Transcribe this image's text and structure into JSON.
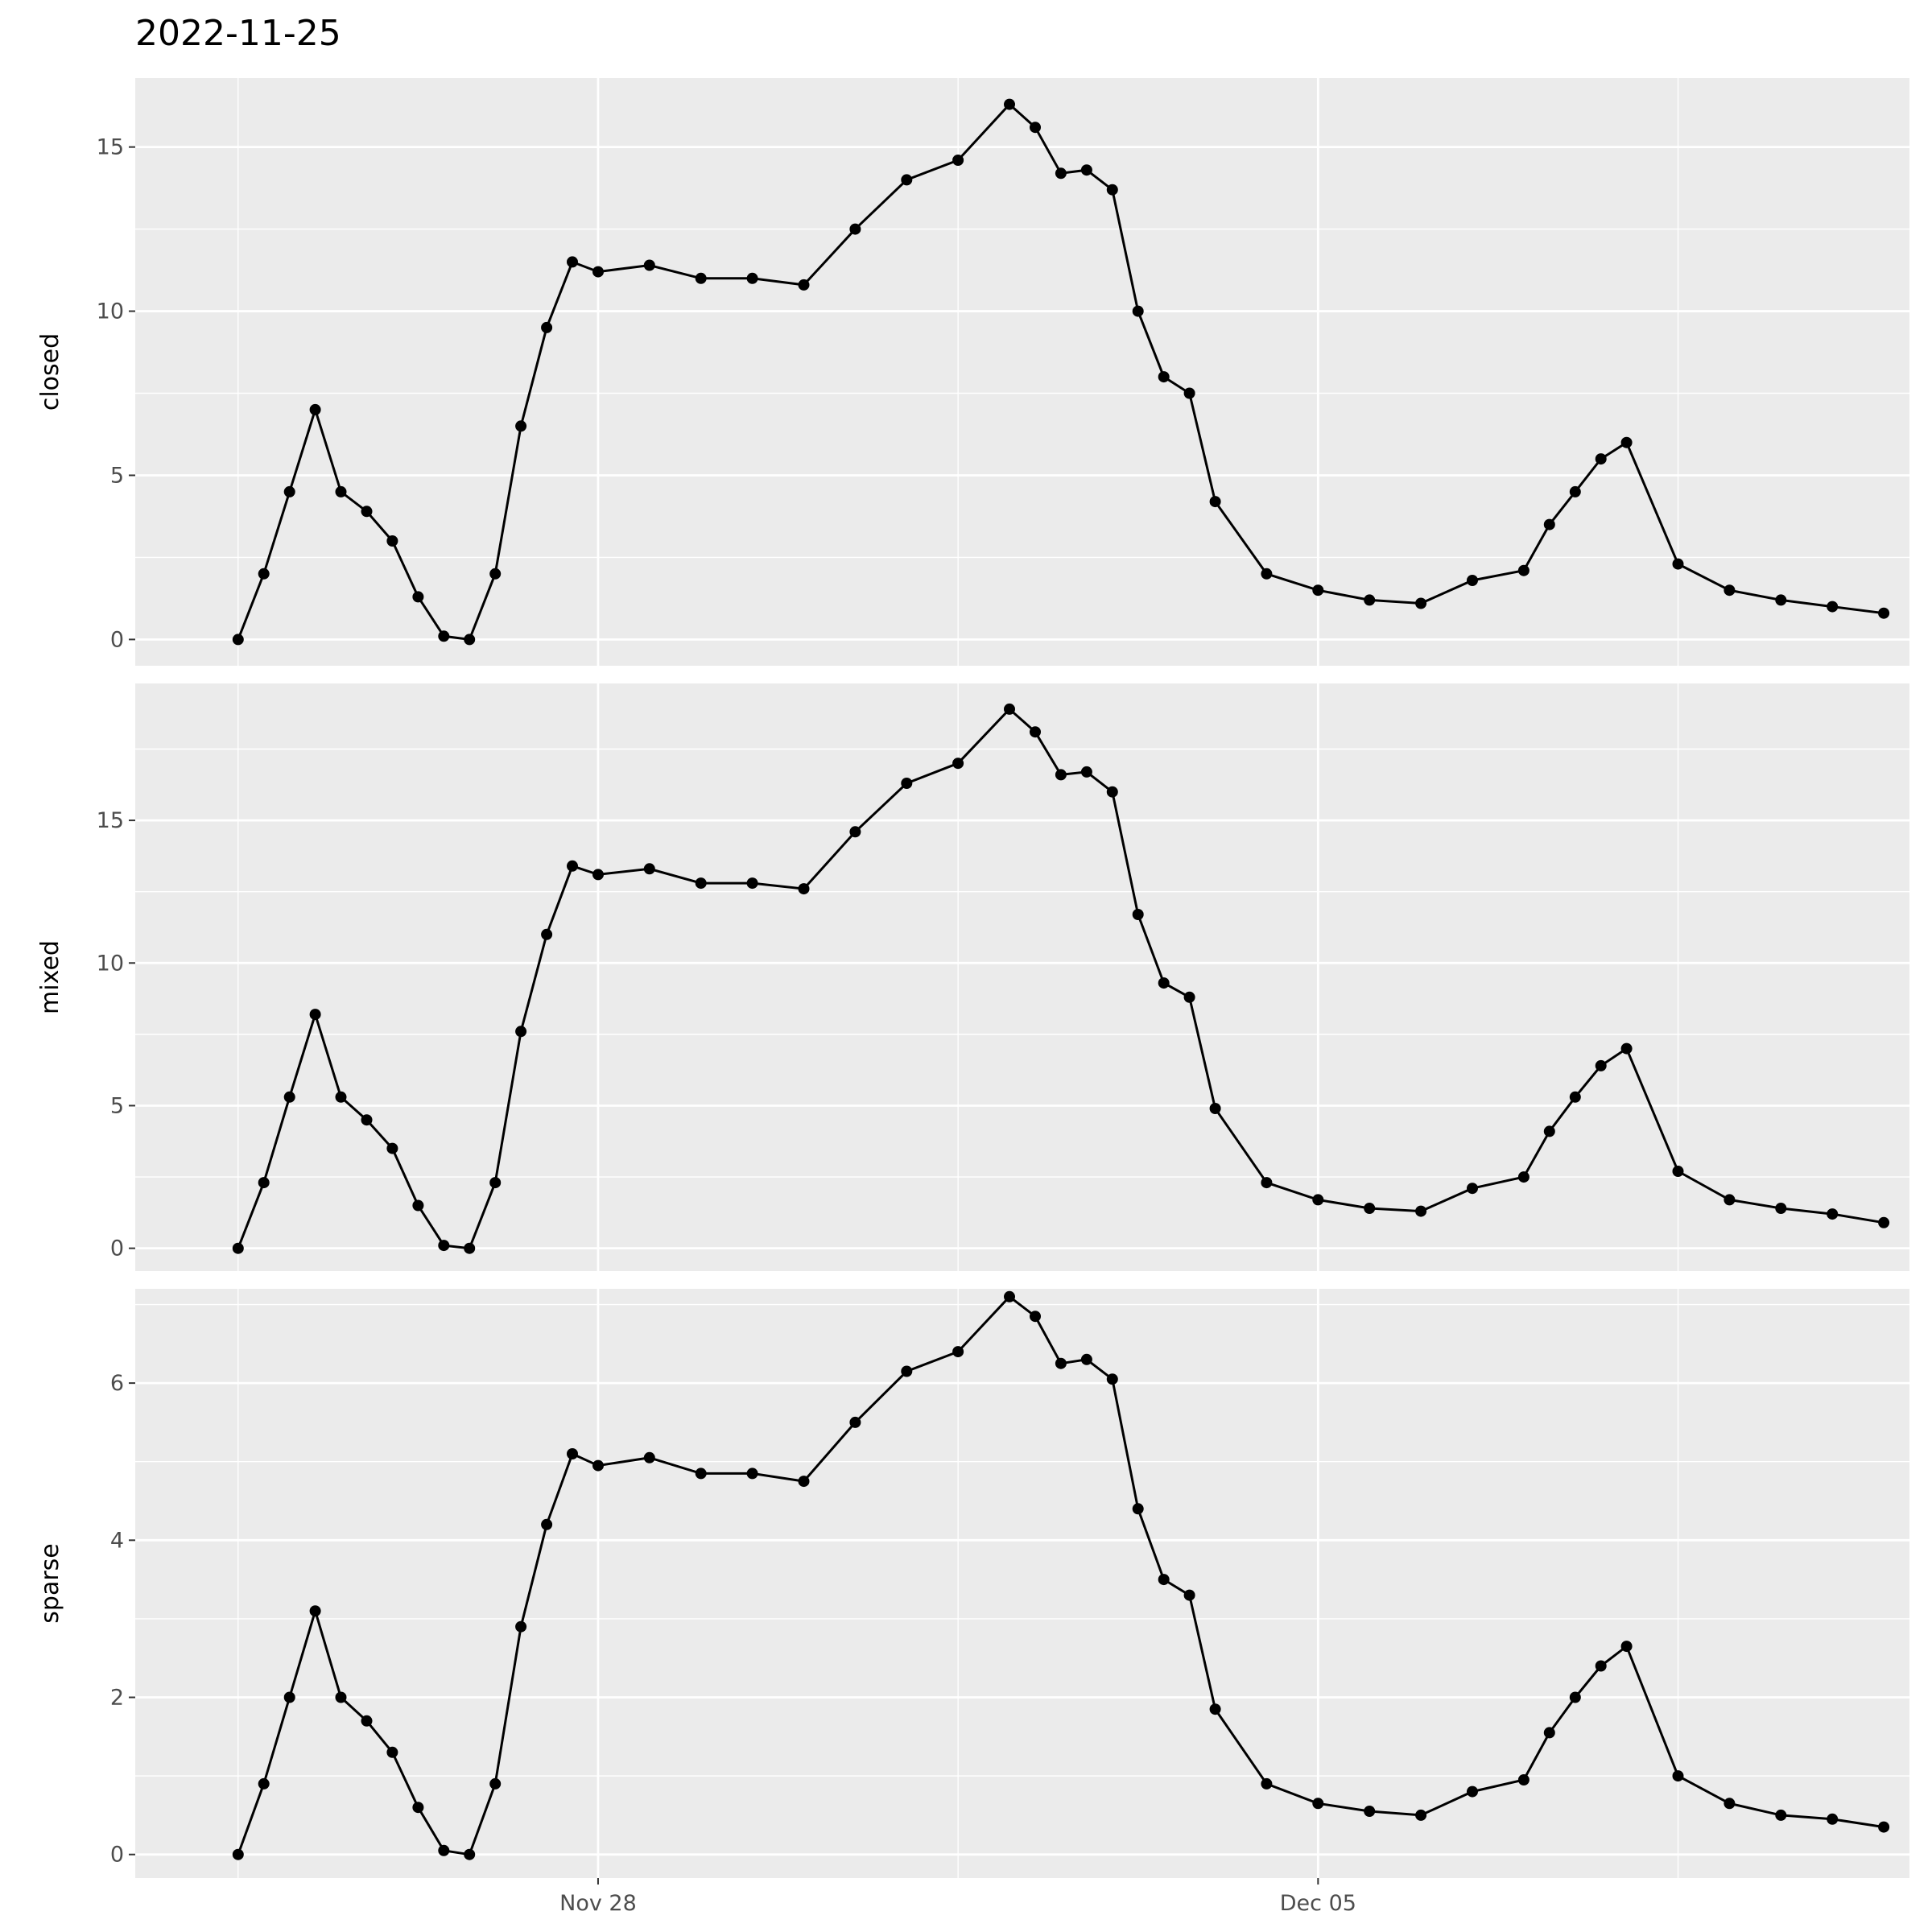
{
  "chart_data": {
    "type": "line",
    "title": "2022-11-25",
    "x_axis": {
      "type": "date",
      "tick_labels": [
        "Nov 28",
        "Dec 05"
      ],
      "ticks": [
        "2022-11-28",
        "2022-12-05"
      ],
      "range": [
        "2022-11-23 12:00",
        "2022-12-10 18:00"
      ]
    },
    "grid": true,
    "legend": "none",
    "panels": [
      {
        "name": "closed",
        "ylabel": "closed",
        "ylim": [
          -0.8,
          17.1
        ],
        "yticks": [
          0,
          5,
          10,
          15
        ],
        "x": [
          "2022-11-24 12:00",
          "2022-11-24 18:00",
          "2022-11-25 00:00",
          "2022-11-25 06:00",
          "2022-11-25 12:00",
          "2022-11-25 18:00",
          "2022-11-26 00:00",
          "2022-11-26 06:00",
          "2022-11-26 12:00",
          "2022-11-26 18:00",
          "2022-11-27 00:00",
          "2022-11-27 06:00",
          "2022-11-27 12:00",
          "2022-11-27 18:00",
          "2022-11-28 00:00",
          "2022-11-28 12:00",
          "2022-11-29 00:00",
          "2022-11-29 12:00",
          "2022-11-30 00:00",
          "2022-11-30 12:00",
          "2022-12-01 00:00",
          "2022-12-01 12:00",
          "2022-12-02 00:00",
          "2022-12-02 06:00",
          "2022-12-02 12:00",
          "2022-12-02 18:00",
          "2022-12-03 00:00",
          "2022-12-03 06:00",
          "2022-12-03 12:00",
          "2022-12-03 18:00",
          "2022-12-04 00:00",
          "2022-12-04 12:00",
          "2022-12-05 00:00",
          "2022-12-05 12:00",
          "2022-12-06 00:00",
          "2022-12-06 12:00",
          "2022-12-07 00:00",
          "2022-12-07 06:00",
          "2022-12-07 12:00",
          "2022-12-07 18:00",
          "2022-12-08 00:00",
          "2022-12-08 12:00",
          "2022-12-09 00:00",
          "2022-12-09 12:00",
          "2022-12-10 00:00",
          "2022-12-10 12:00"
        ],
        "y": [
          0.0,
          2.0,
          4.5,
          7.0,
          4.5,
          3.9,
          3.0,
          1.3,
          0.1,
          0.0,
          2.0,
          6.5,
          9.5,
          11.5,
          11.2,
          11.4,
          11.0,
          11.0,
          10.8,
          12.5,
          14.0,
          14.6,
          16.3,
          15.6,
          14.2,
          14.3,
          13.7,
          10.0,
          8.0,
          7.5,
          4.2,
          2.0,
          1.5,
          1.2,
          1.1,
          1.8,
          2.1,
          3.5,
          4.5,
          5.5,
          6.0,
          2.3,
          1.5,
          1.2,
          1.0,
          0.8
        ]
      },
      {
        "name": "mixed",
        "ylabel": "mixed",
        "ylim": [
          -0.8,
          19.8
        ],
        "yticks": [
          0,
          5,
          10,
          15
        ],
        "x": [
          "2022-11-24 12:00",
          "2022-11-24 18:00",
          "2022-11-25 00:00",
          "2022-11-25 06:00",
          "2022-11-25 12:00",
          "2022-11-25 18:00",
          "2022-11-26 00:00",
          "2022-11-26 06:00",
          "2022-11-26 12:00",
          "2022-11-26 18:00",
          "2022-11-27 00:00",
          "2022-11-27 06:00",
          "2022-11-27 12:00",
          "2022-11-27 18:00",
          "2022-11-28 00:00",
          "2022-11-28 12:00",
          "2022-11-29 00:00",
          "2022-11-29 12:00",
          "2022-11-30 00:00",
          "2022-11-30 12:00",
          "2022-12-01 00:00",
          "2022-12-01 12:00",
          "2022-12-02 00:00",
          "2022-12-02 06:00",
          "2022-12-02 12:00",
          "2022-12-02 18:00",
          "2022-12-03 00:00",
          "2022-12-03 06:00",
          "2022-12-03 12:00",
          "2022-12-03 18:00",
          "2022-12-04 00:00",
          "2022-12-04 12:00",
          "2022-12-05 00:00",
          "2022-12-05 12:00",
          "2022-12-06 00:00",
          "2022-12-06 12:00",
          "2022-12-07 00:00",
          "2022-12-07 06:00",
          "2022-12-07 12:00",
          "2022-12-07 18:00",
          "2022-12-08 00:00",
          "2022-12-08 12:00",
          "2022-12-09 00:00",
          "2022-12-09 12:00",
          "2022-12-10 00:00",
          "2022-12-10 12:00"
        ],
        "y": [
          0.0,
          2.3,
          5.3,
          8.2,
          5.3,
          4.5,
          3.5,
          1.5,
          0.1,
          0.0,
          2.3,
          7.6,
          11.0,
          13.4,
          13.1,
          13.3,
          12.8,
          12.8,
          12.6,
          14.6,
          16.3,
          17.0,
          18.9,
          18.1,
          16.6,
          16.7,
          16.0,
          11.7,
          9.3,
          8.8,
          4.9,
          2.3,
          1.7,
          1.4,
          1.3,
          2.1,
          2.5,
          4.1,
          5.3,
          6.4,
          7.0,
          2.7,
          1.7,
          1.4,
          1.2,
          0.9
        ]
      },
      {
        "name": "sparse",
        "ylabel": "sparse",
        "ylim": [
          -0.3,
          7.2
        ],
        "yticks": [
          0,
          2,
          4,
          6
        ],
        "x": [
          "2022-11-24 12:00",
          "2022-11-24 18:00",
          "2022-11-25 00:00",
          "2022-11-25 06:00",
          "2022-11-25 12:00",
          "2022-11-25 18:00",
          "2022-11-26 00:00",
          "2022-11-26 06:00",
          "2022-11-26 12:00",
          "2022-11-26 18:00",
          "2022-11-27 00:00",
          "2022-11-27 06:00",
          "2022-11-27 12:00",
          "2022-11-27 18:00",
          "2022-11-28 00:00",
          "2022-11-28 12:00",
          "2022-11-29 00:00",
          "2022-11-29 12:00",
          "2022-11-30 00:00",
          "2022-11-30 12:00",
          "2022-12-01 00:00",
          "2022-12-01 12:00",
          "2022-12-02 00:00",
          "2022-12-02 06:00",
          "2022-12-02 12:00",
          "2022-12-02 18:00",
          "2022-12-03 00:00",
          "2022-12-03 06:00",
          "2022-12-03 12:00",
          "2022-12-03 18:00",
          "2022-12-04 00:00",
          "2022-12-04 12:00",
          "2022-12-05 00:00",
          "2022-12-05 12:00",
          "2022-12-06 00:00",
          "2022-12-06 12:00",
          "2022-12-07 00:00",
          "2022-12-07 06:00",
          "2022-12-07 12:00",
          "2022-12-07 18:00",
          "2022-12-08 00:00",
          "2022-12-08 12:00",
          "2022-12-09 00:00",
          "2022-12-09 12:00",
          "2022-12-10 00:00",
          "2022-12-10 12:00"
        ],
        "y": [
          0.0,
          0.9,
          2.0,
          3.1,
          2.0,
          1.7,
          1.3,
          0.6,
          0.05,
          0.0,
          0.9,
          2.9,
          4.2,
          5.1,
          4.95,
          5.05,
          4.85,
          4.85,
          4.75,
          5.5,
          6.15,
          6.4,
          7.1,
          6.85,
          6.25,
          6.3,
          6.05,
          4.4,
          3.5,
          3.3,
          1.85,
          0.9,
          0.65,
          0.55,
          0.5,
          0.8,
          0.95,
          1.55,
          2.0,
          2.4,
          2.65,
          1.0,
          0.65,
          0.5,
          0.45,
          0.35
        ]
      }
    ]
  }
}
